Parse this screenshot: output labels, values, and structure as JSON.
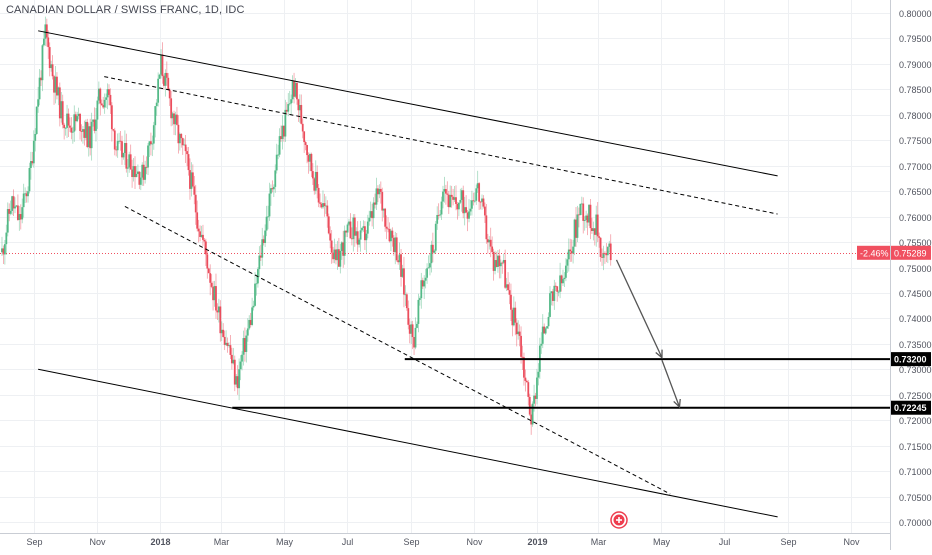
{
  "chart_data": {
    "type": "candlestick",
    "title": "CANADIAN DOLLAR / SWISS FRANC, 1D, IDC",
    "ylim": [
      0.6995,
      0.8015
    ],
    "y_ticks": [
      "0.70000",
      "0.70500",
      "0.71000",
      "0.71500",
      "0.72000",
      "0.72500",
      "0.73000",
      "0.73500",
      "0.74000",
      "0.74500",
      "0.75000",
      "0.75500",
      "0.76000",
      "0.76500",
      "0.77000",
      "0.77500",
      "0.78000",
      "0.78500",
      "0.79000",
      "0.79500",
      "0.80000"
    ],
    "x_ticks": [
      "Sep",
      "Nov",
      "2018",
      "Mar",
      "May",
      "Jul",
      "Sep",
      "Nov",
      "2019",
      "Mar",
      "May",
      "Jul",
      "Sep",
      "Nov"
    ],
    "price_path": [
      [
        "2017-08-01",
        0.753
      ],
      [
        "2017-08-10",
        0.763
      ],
      [
        "2017-08-18",
        0.759
      ],
      [
        "2017-08-28",
        0.768
      ],
      [
        "2017-09-05",
        0.784
      ],
      [
        "2017-09-12",
        0.796
      ],
      [
        "2017-09-20",
        0.787
      ],
      [
        "2017-09-28",
        0.78
      ],
      [
        "2017-10-06",
        0.778
      ],
      [
        "2017-10-15",
        0.779
      ],
      [
        "2017-10-25",
        0.775
      ],
      [
        "2017-11-03",
        0.783
      ],
      [
        "2017-11-12",
        0.784
      ],
      [
        "2017-11-20",
        0.773
      ],
      [
        "2017-11-28",
        0.772
      ],
      [
        "2017-12-06",
        0.77
      ],
      [
        "2017-12-15",
        0.768
      ],
      [
        "2017-12-25",
        0.777
      ],
      [
        "2018-01-02",
        0.79
      ],
      [
        "2018-01-10",
        0.783
      ],
      [
        "2018-01-18",
        0.776
      ],
      [
        "2018-01-28",
        0.77
      ],
      [
        "2018-02-06",
        0.76
      ],
      [
        "2018-02-15",
        0.752
      ],
      [
        "2018-02-22",
        0.745
      ],
      [
        "2018-03-01",
        0.739
      ],
      [
        "2018-03-08",
        0.735
      ],
      [
        "2018-03-16",
        0.727
      ],
      [
        "2018-03-24",
        0.735
      ],
      [
        "2018-04-01",
        0.742
      ],
      [
        "2018-04-10",
        0.755
      ],
      [
        "2018-04-18",
        0.764
      ],
      [
        "2018-04-26",
        0.774
      ],
      [
        "2018-05-04",
        0.78
      ],
      [
        "2018-05-10",
        0.786
      ],
      [
        "2018-05-18",
        0.779
      ],
      [
        "2018-05-26",
        0.771
      ],
      [
        "2018-06-04",
        0.764
      ],
      [
        "2018-06-12",
        0.76
      ],
      [
        "2018-06-20",
        0.75
      ],
      [
        "2018-06-28",
        0.755
      ],
      [
        "2018-07-06",
        0.758
      ],
      [
        "2018-07-14",
        0.755
      ],
      [
        "2018-07-22",
        0.758
      ],
      [
        "2018-08-01",
        0.765
      ],
      [
        "2018-08-10",
        0.758
      ],
      [
        "2018-08-18",
        0.754
      ],
      [
        "2018-08-26",
        0.745
      ],
      [
        "2018-09-03",
        0.735
      ],
      [
        "2018-09-08",
        0.742
      ],
      [
        "2018-09-16",
        0.75
      ],
      [
        "2018-09-24",
        0.755
      ],
      [
        "2018-10-02",
        0.767
      ],
      [
        "2018-10-10",
        0.762
      ],
      [
        "2018-10-18",
        0.763
      ],
      [
        "2018-10-26",
        0.762
      ],
      [
        "2018-11-04",
        0.766
      ],
      [
        "2018-11-12",
        0.758
      ],
      [
        "2018-11-20",
        0.751
      ],
      [
        "2018-11-28",
        0.752
      ],
      [
        "2018-12-06",
        0.742
      ],
      [
        "2018-12-14",
        0.738
      ],
      [
        "2018-12-20",
        0.729
      ],
      [
        "2018-12-27",
        0.72
      ],
      [
        "2019-01-04",
        0.734
      ],
      [
        "2019-01-12",
        0.742
      ],
      [
        "2019-01-20",
        0.745
      ],
      [
        "2019-01-28",
        0.748
      ],
      [
        "2019-02-04",
        0.755
      ],
      [
        "2019-02-12",
        0.762
      ],
      [
        "2019-02-20",
        0.76
      ],
      [
        "2019-02-28",
        0.758
      ],
      [
        "2019-03-06",
        0.752
      ],
      [
        "2019-03-14",
        0.753
      ]
    ],
    "trendlines": [
      {
        "style": "solid",
        "from": [
          "2017-09-05",
          0.7965
        ],
        "to": [
          "2019-08-22",
          0.768
        ]
      },
      {
        "style": "solid",
        "from": [
          "2017-09-05",
          0.73
        ],
        "to": [
          "2019-08-22",
          0.701
        ]
      },
      {
        "style": "dashed",
        "from": [
          "2017-11-08",
          0.7875
        ],
        "to": [
          "2019-08-22",
          0.7605
        ]
      },
      {
        "style": "dashed",
        "from": [
          "2017-11-28",
          0.762
        ],
        "to": [
          "2019-05-10",
          0.7055
        ]
      }
    ],
    "horizontal_levels": [
      {
        "value": 0.732,
        "label": "0.73200",
        "from": "2018-08-26"
      },
      {
        "value": 0.72245,
        "label": "0.72245",
        "from": "2018-03-12"
      }
    ],
    "projection_arrows": [
      {
        "from": [
          "2019-03-19",
          0.7515
        ],
        "to": [
          "2019-05-02",
          0.7323
        ]
      },
      {
        "from": [
          "2019-05-02",
          0.7318
        ],
        "to": [
          "2019-05-19",
          0.7226
        ]
      }
    ],
    "current_price": {
      "value": 0.75289,
      "label": "0.75289",
      "change": "-2.46%"
    },
    "colors": {
      "up": "#53b987",
      "down": "#eb4d5c",
      "line": "#000000",
      "current": "#f05060",
      "grid": "#eef0f3",
      "axis_text": "#50535e",
      "marker": "#ee3d4e"
    }
  }
}
